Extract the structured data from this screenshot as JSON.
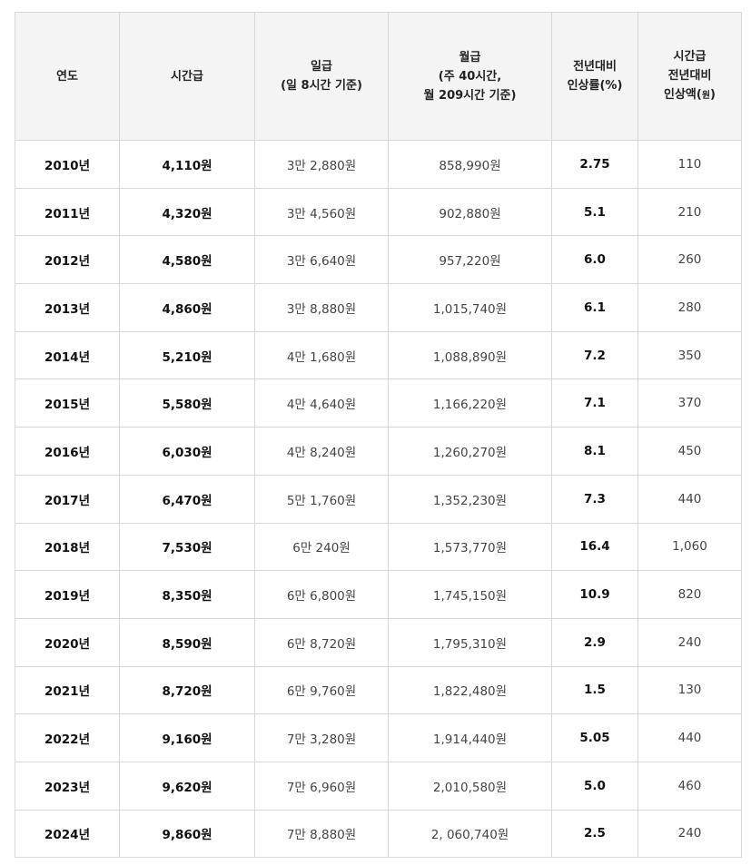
{
  "headers": {
    "year": "연도",
    "hourly": "시간급",
    "daily_line1": "일급",
    "daily_line2": "(일 8시간 기준)",
    "monthly_line1": "월급",
    "monthly_line2": "(주 40시간,",
    "monthly_line3": "월 209시간 기준)",
    "rate_line1": "전년대비",
    "rate_line2": "인상률(%)",
    "amount_line1": "시간급",
    "amount_line2": "전년대비",
    "amount_line3_main": "인상액(",
    "amount_line3_unit": "원",
    "amount_line3_close": ")"
  },
  "rows": [
    {
      "year": "2010년",
      "hourly": "4,110원",
      "daily": "3만 2,880원",
      "monthly": "858,990원",
      "rate": "2.75",
      "amount": "110"
    },
    {
      "year": "2011년",
      "hourly": "4,320원",
      "daily": "3만 4,560원",
      "monthly": "902,880원",
      "rate": "5.1",
      "amount": "210"
    },
    {
      "year": "2012년",
      "hourly": "4,580원",
      "daily": "3만 6,640원",
      "monthly": "957,220원",
      "rate": "6.0",
      "amount": "260"
    },
    {
      "year": "2013년",
      "hourly": "4,860원",
      "daily": "3만 8,880원",
      "monthly": "1,015,740원",
      "rate": "6.1",
      "amount": "280"
    },
    {
      "year": "2014년",
      "hourly": "5,210원",
      "daily": "4만 1,680원",
      "monthly": "1,088,890원",
      "rate": "7.2",
      "amount": "350"
    },
    {
      "year": "2015년",
      "hourly": "5,580원",
      "daily": "4만 4,640원",
      "monthly": "1,166,220원",
      "rate": "7.1",
      "amount": "370"
    },
    {
      "year": "2016년",
      "hourly": "6,030원",
      "daily": "4만 8,240원",
      "monthly": "1,260,270원",
      "rate": "8.1",
      "amount": "450"
    },
    {
      "year": "2017년",
      "hourly": "6,470원",
      "daily": "5만 1,760원",
      "monthly": "1,352,230원",
      "rate": "7.3",
      "amount": "440"
    },
    {
      "year": "2018년",
      "hourly": "7,530원",
      "daily": "6만 240원",
      "monthly": "1,573,770원",
      "rate": "16.4",
      "amount": "1,060"
    },
    {
      "year": "2019년",
      "hourly": "8,350원",
      "daily": "6만 6,800원",
      "monthly": "1,745,150원",
      "rate": "10.9",
      "amount": "820"
    },
    {
      "year": "2020년",
      "hourly": "8,590원",
      "daily": "6만 8,720원",
      "monthly": "1,795,310원",
      "rate": "2.9",
      "amount": "240"
    },
    {
      "year": "2021년",
      "hourly": "8,720원",
      "daily": "6만 9,760원",
      "monthly": "1,822,480원",
      "rate": "1.5",
      "amount": "130"
    },
    {
      "year": "2022년",
      "hourly": "9,160원",
      "daily": "7만 3,280원",
      "monthly": "1,914,440원",
      "rate": "5.05",
      "amount": "440"
    },
    {
      "year": "2023년",
      "hourly": "9,620원",
      "daily": "7만 6,960원",
      "monthly": "2,010,580원",
      "rate": "5.0",
      "amount": "460"
    },
    {
      "year": "2024년",
      "hourly": "9,860원",
      "daily": "7만 8,880원",
      "monthly": "2, 060,740원",
      "rate": "2.5",
      "amount": "240"
    }
  ]
}
